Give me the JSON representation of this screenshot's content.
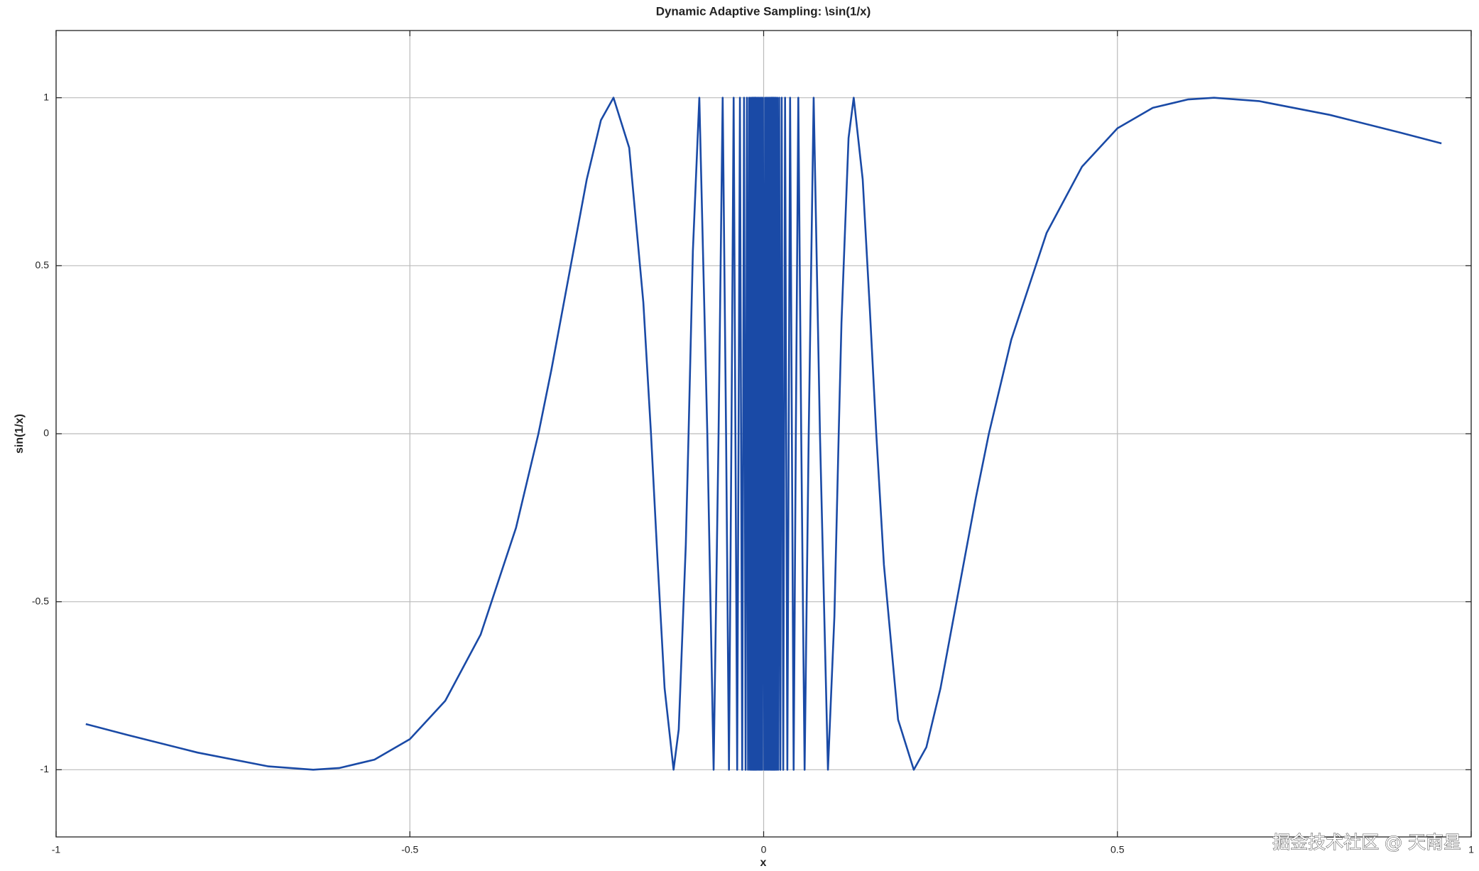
{
  "chart_data": {
    "type": "line",
    "title": "Dynamic Adaptive Sampling: \\sin(1/x)",
    "xlabel": "x",
    "ylabel": "sin(1/x)",
    "xlim": [
      -1,
      1
    ],
    "ylim": [
      -1.2,
      1.2
    ],
    "xticks": [
      -1,
      -0.5,
      0,
      0.5,
      1
    ],
    "yticks": [
      -1,
      -0.5,
      0,
      0.5,
      1
    ],
    "grid": true,
    "x": [
      -0.958,
      -0.9,
      -0.8,
      -0.7,
      -0.6366,
      -0.6,
      -0.55,
      -0.5,
      -0.45,
      -0.4,
      -0.35,
      -0.3183,
      -0.3,
      -0.27,
      -0.25,
      -0.23,
      -0.2122,
      -0.19,
      -0.17,
      -0.1592,
      -0.15,
      -0.14,
      -0.1273,
      -0.12,
      -0.11,
      -0.1061,
      -0.1,
      -0.0909,
      -0.0796,
      -0.0707,
      -0.0637,
      -0.0579,
      -0.0531,
      -0.049,
      -0.0455,
      -0.0424,
      -0.0374,
      -0.0335,
      -0.0303,
      -0.0277,
      -0.0255,
      -0.0236,
      -0.022,
      -0.0205,
      -0.0193,
      -0.0182,
      -0.0172,
      -0.0163,
      -0.0155,
      -0.0148,
      -0.0142,
      -0.0136,
      -0.013,
      -0.0125,
      -0.012,
      -0.0116,
      -0.0112,
      -0.0108,
      -0.01,
      -0.009,
      -0.008,
      -0.007,
      -0.006,
      -0.005,
      -0.004,
      -0.003,
      -0.002,
      -0.001,
      0.001,
      0.002,
      0.003,
      0.004,
      0.005,
      0.006,
      0.007,
      0.008,
      0.009,
      0.01,
      0.0108,
      0.0112,
      0.0116,
      0.012,
      0.0125,
      0.013,
      0.0136,
      0.0142,
      0.0148,
      0.0155,
      0.0163,
      0.0172,
      0.0182,
      0.0193,
      0.0205,
      0.022,
      0.0236,
      0.0255,
      0.0277,
      0.0303,
      0.0335,
      0.0374,
      0.0424,
      0.0455,
      0.049,
      0.0531,
      0.0579,
      0.0637,
      0.0707,
      0.0796,
      0.0909,
      0.1,
      0.1061,
      0.11,
      0.12,
      0.1273,
      0.14,
      0.15,
      0.1592,
      0.17,
      0.19,
      0.2122,
      0.23,
      0.25,
      0.27,
      0.3,
      0.3183,
      0.35,
      0.4,
      0.45,
      0.5,
      0.55,
      0.6,
      0.6366,
      0.7,
      0.8,
      0.9,
      0.958
    ],
    "series": [
      {
        "color": "#1a4aa6",
        "values": [
          -0.864,
          -0.896,
          -0.949,
          -0.99,
          -1,
          -0.995,
          -0.97,
          -0.909,
          -0.795,
          -0.598,
          -0.28,
          0,
          0.19,
          0.53,
          0.757,
          0.933,
          1,
          0.851,
          0.39,
          0,
          -0.374,
          -0.757,
          -1,
          -0.88,
          -0.33,
          0,
          0.544,
          1,
          0,
          -1,
          0,
          1,
          0,
          -1,
          0,
          1,
          -1,
          1,
          -1,
          1,
          -1,
          1,
          -1,
          1,
          -1,
          1,
          -1,
          1,
          -1,
          1,
          -1,
          1,
          -1,
          1,
          -1,
          1,
          -1,
          1,
          -1,
          1,
          -1,
          1,
          -1,
          1,
          -1,
          1,
          -1,
          1,
          -1,
          1,
          -1,
          1,
          -1,
          1,
          -1,
          1,
          -1,
          1,
          -1,
          1,
          -1,
          1,
          -1,
          1,
          -1,
          1,
          -1,
          1,
          -1,
          1,
          -1,
          1,
          -1,
          1,
          -1,
          1,
          -1,
          1,
          -1,
          1,
          -1,
          0,
          1,
          0,
          -1,
          0,
          1,
          0,
          -1,
          -0.544,
          0,
          0.33,
          0.88,
          1,
          0.757,
          0.374,
          0,
          -0.39,
          -0.851,
          -1,
          -0.933,
          -0.757,
          -0.53,
          -0.19,
          0,
          0.28,
          0.598,
          0.795,
          0.909,
          0.97,
          0.995,
          1,
          0.99,
          0.949,
          0.896,
          0.864
        ]
      }
    ]
  },
  "watermark": "掘金技术社区 @ 天南星"
}
